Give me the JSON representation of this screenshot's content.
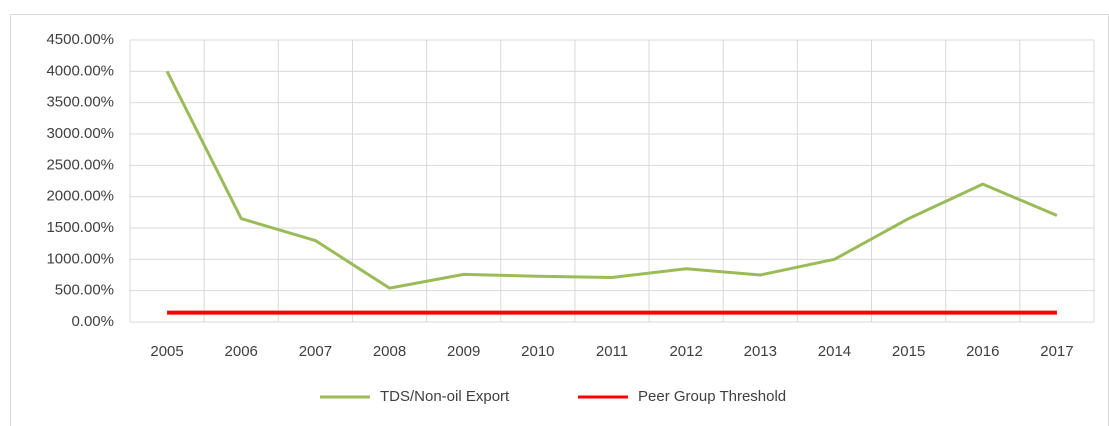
{
  "chart_data": {
    "type": "line",
    "categories": [
      "2005",
      "2006",
      "2007",
      "2008",
      "2009",
      "2010",
      "2011",
      "2012",
      "2013",
      "2014",
      "2015",
      "2016",
      "2017"
    ],
    "series": [
      {
        "name": "TDS/Non-oil Export",
        "color": "#9bbb59",
        "values": [
          4000,
          1650,
          1300,
          540,
          760,
          730,
          710,
          850,
          750,
          1000,
          1650,
          2200,
          1700
        ]
      },
      {
        "name": "Peer Group Threshold",
        "color": "#ff0000",
        "values": [
          150,
          150,
          150,
          150,
          150,
          150,
          150,
          150,
          150,
          150,
          150,
          150,
          150
        ]
      }
    ],
    "ylim": [
      0,
      4500
    ],
    "yticks": [
      {
        "value": 0,
        "label": "0.00%"
      },
      {
        "value": 500,
        "label": "500.00%"
      },
      {
        "value": 1000,
        "label": "1000.00%"
      },
      {
        "value": 1500,
        "label": "1500.00%"
      },
      {
        "value": 2000,
        "label": "2000.00%"
      },
      {
        "value": 2500,
        "label": "2500.00%"
      },
      {
        "value": 3000,
        "label": "3000.00%"
      },
      {
        "value": 3500,
        "label": "3500.00%"
      },
      {
        "value": 4000,
        "label": "4000.00%"
      },
      {
        "value": 4500,
        "label": "4500.00%"
      }
    ],
    "grid": true,
    "legend": "bottom"
  }
}
